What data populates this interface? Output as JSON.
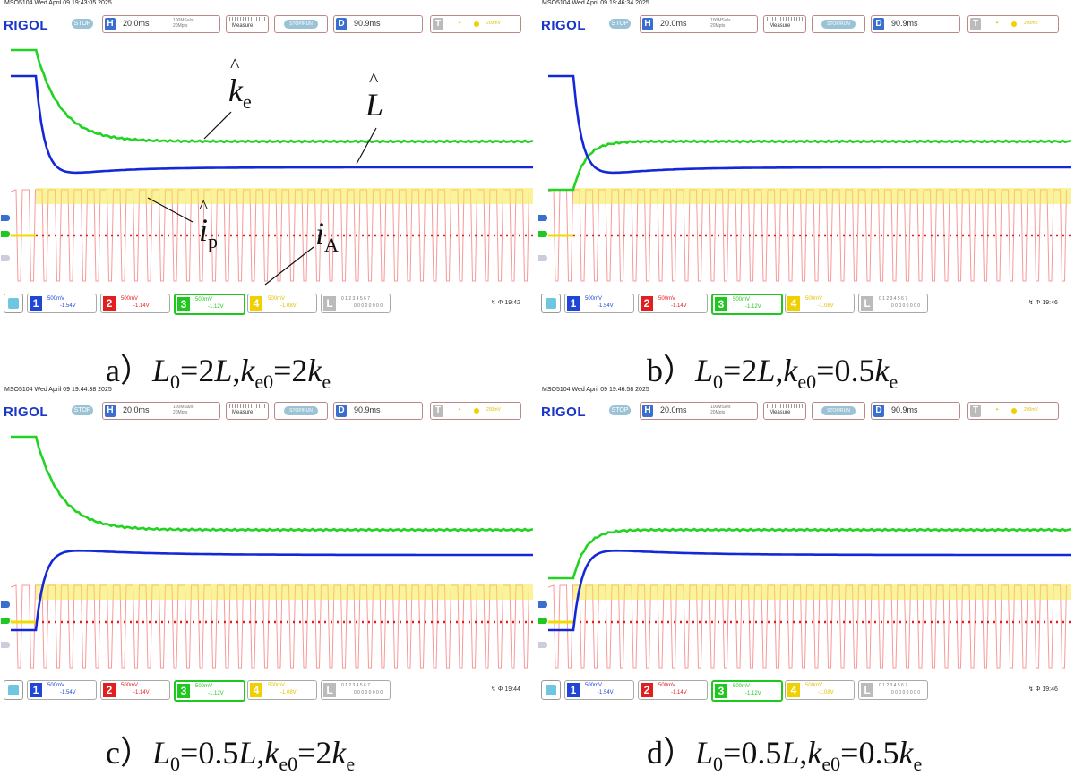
{
  "panels": [
    {
      "id": "a",
      "header": "MSO5104  Wed April 09 19:43:05 2025",
      "clock": "19:42",
      "caption": {
        "prefix": "a）",
        "L0": "L",
        "L0_rhs": "=2L,",
        "ke0_rhs": "=2k"
      }
    },
    {
      "id": "b",
      "header": "MSO5104  Wed April 09 19:46:34 2025",
      "clock": "19:46",
      "caption": {
        "prefix": "b）",
        "L0_rhs": "=2L,",
        "ke0_rhs": "=0.5k"
      }
    },
    {
      "id": "c",
      "header": "MSO5104  Wed April 09 19:44:38 2025",
      "clock": "19:44",
      "caption": {
        "prefix": "c）",
        "L0_rhs": "=0.5L,",
        "ke0_rhs": "=2k"
      }
    },
    {
      "id": "d",
      "header": "MSO5104  Wed April 09 19:46:58 2025",
      "clock": "19:46",
      "caption": {
        "prefix": "d）",
        "L0_rhs": "=0.5L,",
        "ke0_rhs": "=0.5k"
      }
    }
  ],
  "toolbar": {
    "logo": "RIGOL",
    "stop": "STOP",
    "h_tag": "H",
    "h_value": "20.0ms",
    "h_small1": "100MSa/s",
    "h_small2": "20Mpts",
    "measure": "Measure",
    "stoprun": "STOP/RUN",
    "d_tag": "D",
    "d_value": "90.9ms",
    "t_tag": "T",
    "t_level": "200mV"
  },
  "channels": {
    "ch1": {
      "num": "1",
      "scale": "500mV",
      "offset": "-1.54V"
    },
    "ch2": {
      "num": "2",
      "scale": "500mV",
      "offset": "-1.14V"
    },
    "ch3": {
      "num": "3",
      "scale": "500mV",
      "offset": "-1.12V"
    },
    "ch4": {
      "num": "4",
      "scale": "500mV",
      "offset": "-1.08V"
    },
    "chL": {
      "num": "L",
      "l1": "0 1 2 3  4 5 6 7",
      "l2": "0 0 0 0  0 0 0 0"
    }
  },
  "annotations": {
    "ke": "k",
    "ke_sub": "e",
    "L": "L",
    "ip": "i",
    "ip_sub": "p",
    "iA": "i",
    "iA_sub": "A",
    "hat": "^"
  },
  "caption_parts": {
    "L0": "L",
    "L0_sub": "0",
    "ke0": "k",
    "ke0_sub": "e0",
    "ke_sub": "e"
  },
  "colors": {
    "green": "#22d322",
    "blue": "#1428d8",
    "yellow": "#f5e94a",
    "red": "#f04545",
    "rigol_blue": "#1a37c8"
  }
}
